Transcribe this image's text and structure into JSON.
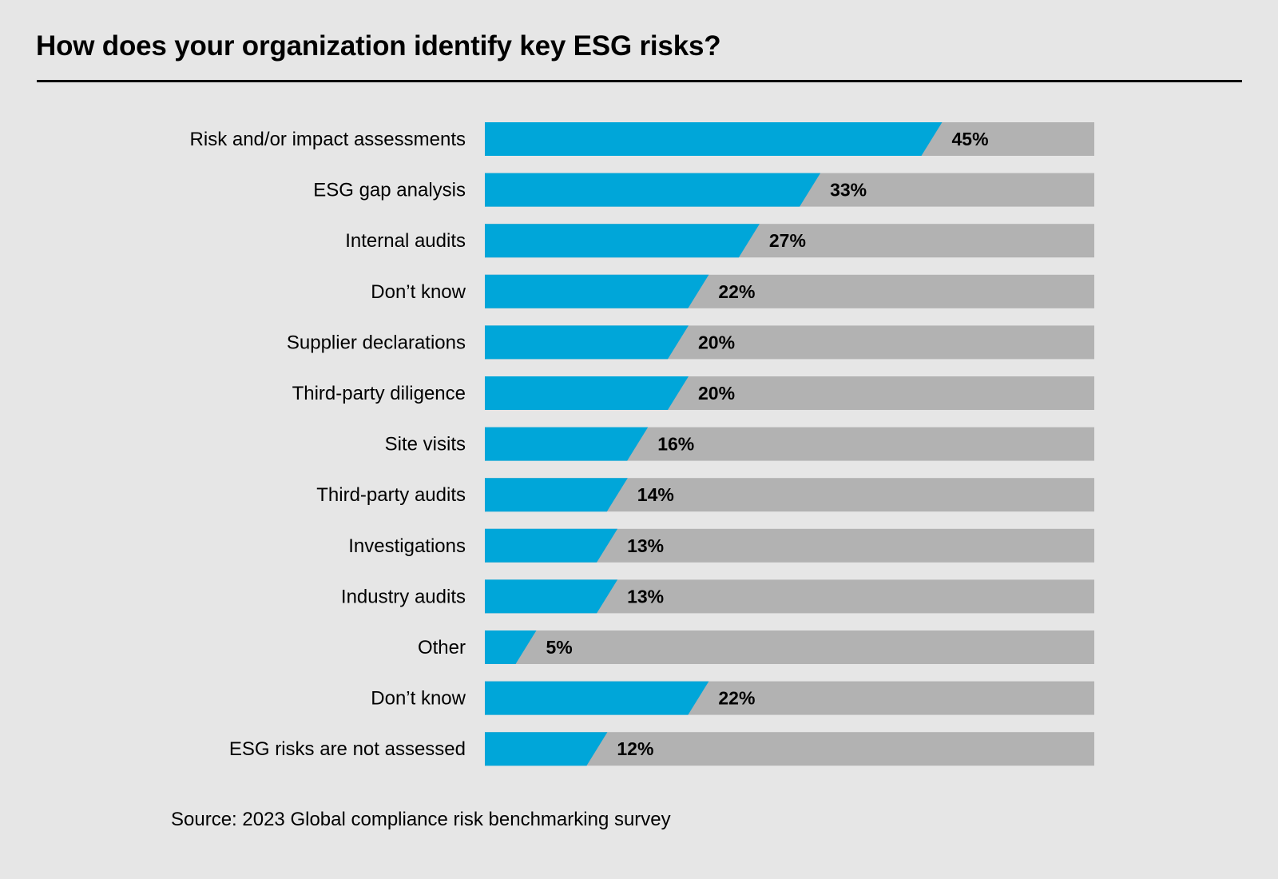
{
  "title": "How does your organization identify key ESG risks?",
  "source": "Source: 2023 Global compliance risk benchmarking survey",
  "colors": {
    "background": "#E6E6E6",
    "bar_fill": "#00A6D9",
    "bar_track": "#B2B2B2",
    "text": "#000000"
  },
  "chart_data": {
    "type": "bar",
    "orientation": "horizontal",
    "title": "How does your organization identify key ESG risks?",
    "xlabel": "",
    "ylabel": "",
    "unit": "%",
    "xlim": [
      0,
      100
    ],
    "grid": false,
    "legend": "none",
    "categories": [
      "Risk and/or impact assessments",
      "ESG gap analysis",
      "Internal audits",
      "Don’t know",
      "Supplier declarations",
      "Third-party diligence",
      "Site visits",
      "Third-party audits",
      "Investigations",
      "Industry audits",
      "Other",
      "Don’t know",
      "ESG risks are not assessed"
    ],
    "values": [
      45,
      33,
      27,
      22,
      20,
      20,
      16,
      14,
      13,
      13,
      5,
      22,
      12
    ],
    "value_labels": [
      "45%",
      "33%",
      "27%",
      "22%",
      "20%",
      "20%",
      "16%",
      "14%",
      "13%",
      "13%",
      "5%",
      "22%",
      "12%"
    ],
    "source": "Source: 2023 Global compliance risk benchmarking survey"
  }
}
